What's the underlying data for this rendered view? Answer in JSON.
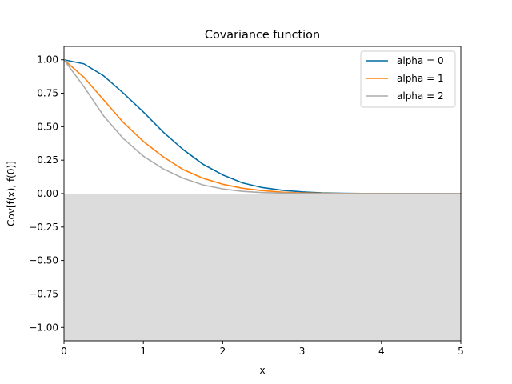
{
  "chart_data": {
    "type": "line",
    "title": "Covariance function",
    "xlabel": "x",
    "ylabel": "Cov[f(x), f(0)]",
    "xlim": [
      0,
      5
    ],
    "ylim": [
      -1.1,
      1.1
    ],
    "xticks": [
      0,
      1,
      2,
      3,
      4,
      5
    ],
    "xtick_labels": [
      "0",
      "1",
      "2",
      "3",
      "4",
      "5"
    ],
    "yticks": [
      -1.0,
      -0.75,
      -0.5,
      -0.25,
      0.0,
      0.25,
      0.5,
      0.75,
      1.0
    ],
    "ytick_labels": [
      "−1.00",
      "−0.75",
      "−0.50",
      "−0.25",
      "0.00",
      "0.25",
      "0.50",
      "0.75",
      "1.00"
    ],
    "grid": false,
    "legend_position": "top-right",
    "shaded_region": {
      "y_from": -1.1,
      "y_to": 0.0,
      "color": "#dcdcdc"
    },
    "x": [
      0,
      0.25,
      0.5,
      0.75,
      1.0,
      1.25,
      1.5,
      1.75,
      2.0,
      2.25,
      2.5,
      2.75,
      3.0,
      3.25,
      3.5,
      3.75,
      4.0,
      4.5,
      5.0
    ],
    "series": [
      {
        "name": "alpha = 0",
        "color": "#006ba4",
        "values": [
          1.0,
          0.97,
          0.88,
          0.75,
          0.61,
          0.46,
          0.33,
          0.22,
          0.14,
          0.08,
          0.045,
          0.025,
          0.013,
          0.006,
          0.003,
          0.0015,
          0.0006,
          0.0001,
          0.0
        ]
      },
      {
        "name": "alpha = 1",
        "color": "#ff800e",
        "values": [
          1.0,
          0.87,
          0.7,
          0.53,
          0.39,
          0.275,
          0.18,
          0.115,
          0.07,
          0.04,
          0.022,
          0.011,
          0.005,
          0.0025,
          0.001,
          0.0005,
          0.0002,
          0.0,
          0.0
        ]
      },
      {
        "name": "alpha = 2",
        "color": "#ababab",
        "values": [
          1.0,
          0.8,
          0.58,
          0.41,
          0.28,
          0.185,
          0.115,
          0.065,
          0.035,
          0.017,
          0.008,
          0.004,
          0.0015,
          0.0006,
          0.0002,
          0.0,
          0.0,
          0.0,
          0.0
        ]
      }
    ]
  }
}
